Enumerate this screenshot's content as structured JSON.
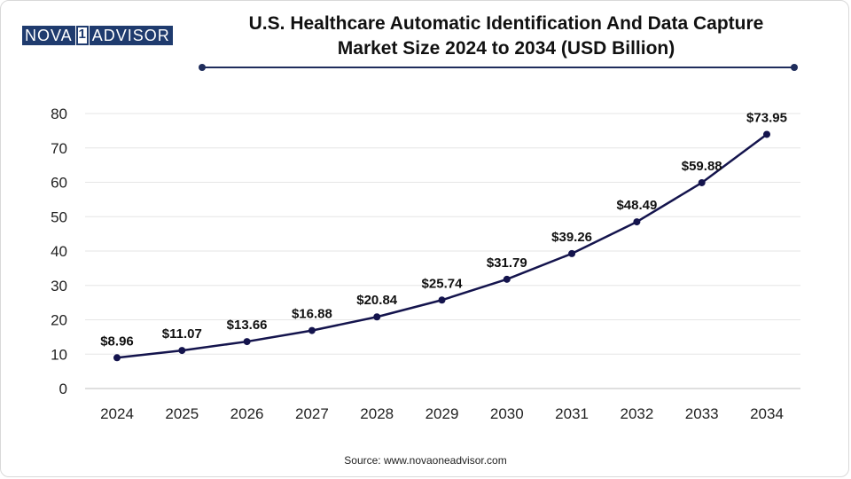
{
  "brand": {
    "part1": "NOVA",
    "part2": "1",
    "part3": "ADVISOR"
  },
  "chart_data": {
    "type": "line",
    "title_line1": "U.S. Healthcare Automatic Identification And Data Capture",
    "title_line2": "Market Size 2024 to 2034 (USD Billion)",
    "xlabel": "",
    "ylabel": "",
    "categories": [
      "2024",
      "2025",
      "2026",
      "2027",
      "2028",
      "2029",
      "2030",
      "2031",
      "2032",
      "2033",
      "2034"
    ],
    "series": [
      {
        "name": "Market Size (USD Billion)",
        "values": [
          8.96,
          11.07,
          13.66,
          16.88,
          20.84,
          25.74,
          31.79,
          39.26,
          48.49,
          59.88,
          73.95
        ],
        "labels": [
          "$8.96",
          "$11.07",
          "$13.66",
          "$16.88",
          "$20.84",
          "$25.74",
          "$31.79",
          "$39.26",
          "$48.49",
          "$59.88",
          "$73.95"
        ]
      }
    ],
    "y_ticks": [
      "0",
      "10",
      "20",
      "30",
      "40",
      "50",
      "60",
      "70",
      "80"
    ],
    "ylim": [
      0,
      80
    ],
    "grid": true,
    "line_color": "#14144d",
    "grid_color": "#e6e6e6",
    "axis_color": "#bfbfbf"
  },
  "source": "Source: www.novaoneadvisor.com"
}
